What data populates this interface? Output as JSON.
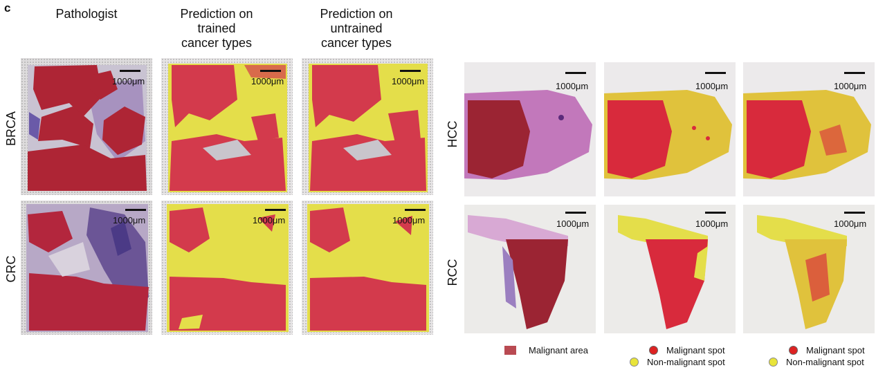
{
  "panel_letter": "c",
  "column_headers": {
    "pathologist": "Pathologist",
    "trained": "Prediction on\ntrained\ncancer types",
    "untrained": "Prediction on\nuntrained\ncancer types"
  },
  "row_labels": {
    "brca": "BRCA",
    "crc": "CRC",
    "hcc": "HCC",
    "rcc": "RCC"
  },
  "scale_label": "1000μm",
  "legend": {
    "malignant_area": "Malignant area",
    "malignant_spot": "Malignant spot",
    "non_malignant_spot": "Non-malignant spot"
  },
  "colors": {
    "malignant_area": "#b94a52",
    "malignant_spot": "#dd2222",
    "non_malignant_spot": "#e8e43a",
    "tissue_purple": "#a986c2"
  }
}
